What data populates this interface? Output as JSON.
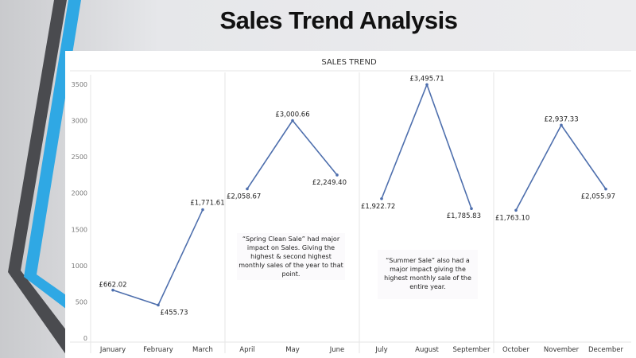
{
  "slide_title": "Sales Trend Analysis",
  "colors": {
    "line": "#4e6fad",
    "accent_blue": "#2fa8e4",
    "dark_gray": "#4a4b4f"
  },
  "chart_data": {
    "type": "line",
    "title": "SALES TREND",
    "categories": [
      "January",
      "February",
      "March",
      "April",
      "May",
      "June",
      "July",
      "August",
      "September",
      "October",
      "November",
      "December"
    ],
    "panes": [
      [
        0,
        1,
        2
      ],
      [
        3,
        4,
        5
      ],
      [
        6,
        7,
        8
      ],
      [
        9,
        10,
        11
      ]
    ],
    "values": [
      662.02,
      455.73,
      1771.61,
      2058.67,
      3000.66,
      2249.4,
      1922.72,
      3495.71,
      1785.83,
      1763.1,
      2937.33,
      2055.97
    ],
    "data_labels": [
      "£662.02",
      "£455.73",
      "£1,771.61",
      "£2,058.67",
      "£3,000.66",
      "£2,249.40",
      "£1,922.72",
      "£3,495.71",
      "£1,785.83",
      "£1,763.10",
      "£2,937.33",
      "£2,055.97"
    ],
    "yticks": [
      0,
      500,
      1000,
      1500,
      2000,
      2500,
      3000,
      3500
    ],
    "ylim": [
      0,
      3500
    ],
    "grid": false,
    "annotations": [
      "“Spring Clean Sale” had major impact on Sales. Giving the highest & second highest monthly sales of the year to that point.",
      "“Summer Sale” also had a major impact giving the highest monthly sale of the entire year."
    ]
  }
}
